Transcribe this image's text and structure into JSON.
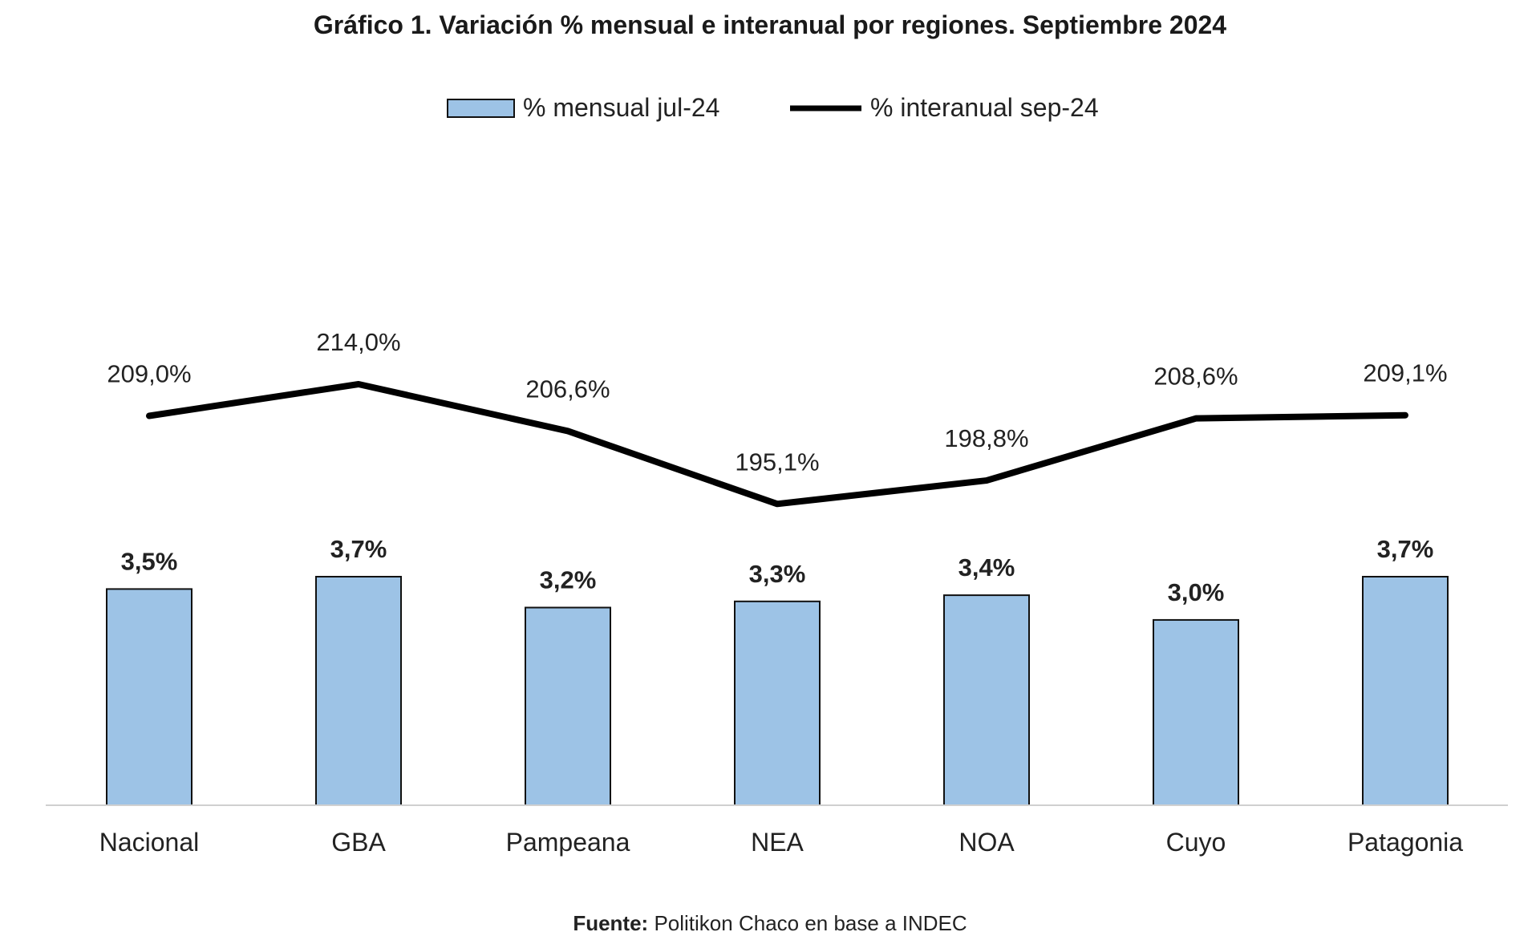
{
  "chart_data": {
    "type": "bar",
    "title": "Gráfico 1. Variación % mensual e interanual por regiones. Septiembre 2024",
    "categories": [
      "Nacional",
      "GBA",
      "Pampeana",
      "NEA",
      "NOA",
      "Cuyo",
      "Patagonia"
    ],
    "series": [
      {
        "name": "% mensual jul-24",
        "type": "bar",
        "color": "#9dc3e6",
        "values": [
          3.5,
          3.7,
          3.2,
          3.3,
          3.4,
          3.0,
          3.7
        ],
        "labels": [
          "3,5%",
          "3,7%",
          "3,2%",
          "3,3%",
          "3,4%",
          "3,0%",
          "3,7%"
        ]
      },
      {
        "name": "% interanual sep-24",
        "type": "line",
        "color": "#000000",
        "values": [
          209.0,
          214.0,
          206.6,
          195.1,
          198.8,
          208.6,
          209.1
        ],
        "labels": [
          "209,0%",
          "214,0%",
          "206,6%",
          "195,1%",
          "198,8%",
          "208,6%",
          "209,1%"
        ]
      }
    ],
    "legend_position": "top",
    "grid": false,
    "source_label": "Fuente:",
    "source_text": "Politikon Chaco en base a INDEC"
  }
}
